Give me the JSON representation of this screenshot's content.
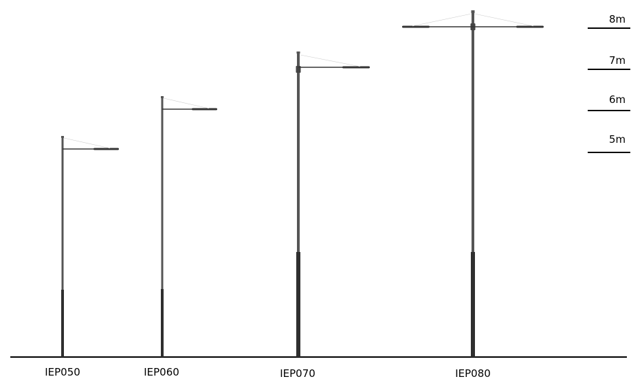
{
  "poles": [
    {
      "label": "IEP050",
      "height_m": 5,
      "arms": 1
    },
    {
      "label": "IEP060",
      "height_m": 6,
      "arms": 1
    },
    {
      "label": "IEP070",
      "height_m": 7,
      "arms": 1
    },
    {
      "label": "IEP080",
      "height_m": 8,
      "arms": 2
    }
  ],
  "height_scale": [
    {
      "label": "8m"
    },
    {
      "label": "7m"
    },
    {
      "label": "6m"
    },
    {
      "label": "5m"
    }
  ],
  "colors": {
    "pole_upper": "#555555",
    "pole_lower": "#2f2f2f",
    "ground": "#000000",
    "luminaire": "#333333"
  }
}
